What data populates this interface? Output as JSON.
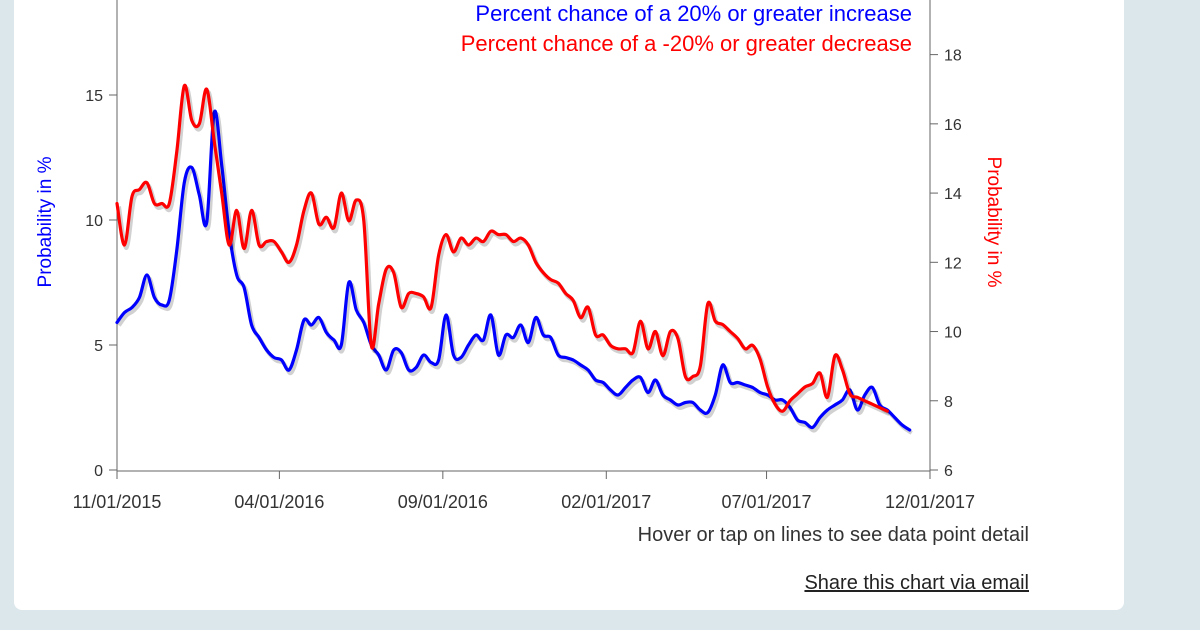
{
  "chart_data": {
    "type": "line",
    "legend": [
      {
        "label": "Percent chance of a 20% or greater increase",
        "color": "#0000ff"
      },
      {
        "label": "Percent chance of a -20% or greater decrease",
        "color": "#ff0000"
      }
    ],
    "y_left": {
      "label": "Probability in %",
      "ticks": [
        "0",
        "5",
        "10",
        "15"
      ],
      "range": [
        0,
        18
      ],
      "color": "#0000ff"
    },
    "y_right": {
      "label": "Probability in %",
      "ticks": [
        "6",
        "8",
        "10",
        "12",
        "14",
        "16",
        "18"
      ],
      "range": [
        6,
        19
      ],
      "color": "#ff0000"
    },
    "x_axis": {
      "ticks": [
        "11/01/2015",
        "04/01/2016",
        "09/01/2016",
        "02/01/2017",
        "07/01/2017",
        "12/01/2017"
      ],
      "range": [
        "2015-11-01",
        "2017-12-01"
      ]
    },
    "series": [
      {
        "name": "Percent chance of a 20% or greater increase",
        "axis": "left",
        "color": "#0000ff",
        "points": [
          [
            "2015-11-01",
            5.9
          ],
          [
            "2015-11-08",
            6.3
          ],
          [
            "2015-11-15",
            6.5
          ],
          [
            "2015-11-22",
            6.9
          ],
          [
            "2015-11-29",
            7.8
          ],
          [
            "2015-12-06",
            6.9
          ],
          [
            "2015-12-13",
            6.6
          ],
          [
            "2015-12-20",
            6.8
          ],
          [
            "2015-12-27",
            8.8
          ],
          [
            "2016-01-03",
            11.5
          ],
          [
            "2016-01-10",
            12.1
          ],
          [
            "2016-01-17",
            11.0
          ],
          [
            "2016-01-24",
            9.9
          ],
          [
            "2016-01-31",
            14.3
          ],
          [
            "2016-02-07",
            12.2
          ],
          [
            "2016-02-14",
            9.5
          ],
          [
            "2016-02-21",
            7.8
          ],
          [
            "2016-02-28",
            7.3
          ],
          [
            "2016-03-06",
            5.8
          ],
          [
            "2016-03-13",
            5.3
          ],
          [
            "2016-03-20",
            4.8
          ],
          [
            "2016-03-27",
            4.5
          ],
          [
            "2016-04-03",
            4.4
          ],
          [
            "2016-04-10",
            4.0
          ],
          [
            "2016-04-17",
            4.8
          ],
          [
            "2016-04-24",
            6.0
          ],
          [
            "2016-05-01",
            5.8
          ],
          [
            "2016-05-08",
            6.1
          ],
          [
            "2016-05-15",
            5.5
          ],
          [
            "2016-05-22",
            5.2
          ],
          [
            "2016-05-29",
            5.0
          ],
          [
            "2016-06-05",
            7.5
          ],
          [
            "2016-06-12",
            6.4
          ],
          [
            "2016-06-19",
            5.9
          ],
          [
            "2016-06-26",
            5.0
          ],
          [
            "2016-07-03",
            4.6
          ],
          [
            "2016-07-10",
            4.0
          ],
          [
            "2016-07-17",
            4.8
          ],
          [
            "2016-07-24",
            4.7
          ],
          [
            "2016-07-31",
            4.0
          ],
          [
            "2016-08-07",
            4.1
          ],
          [
            "2016-08-14",
            4.6
          ],
          [
            "2016-08-21",
            4.3
          ],
          [
            "2016-08-28",
            4.4
          ],
          [
            "2016-09-04",
            6.2
          ],
          [
            "2016-09-11",
            4.6
          ],
          [
            "2016-09-18",
            4.5
          ],
          [
            "2016-09-25",
            5.0
          ],
          [
            "2016-10-02",
            5.4
          ],
          [
            "2016-10-09",
            5.2
          ],
          [
            "2016-10-16",
            6.2
          ],
          [
            "2016-10-23",
            4.6
          ],
          [
            "2016-10-30",
            5.4
          ],
          [
            "2016-11-06",
            5.3
          ],
          [
            "2016-11-13",
            5.8
          ],
          [
            "2016-11-20",
            5.1
          ],
          [
            "2016-11-27",
            6.1
          ],
          [
            "2016-12-04",
            5.4
          ],
          [
            "2016-12-11",
            5.3
          ],
          [
            "2016-12-18",
            4.6
          ],
          [
            "2016-12-25",
            4.5
          ],
          [
            "2017-01-01",
            4.4
          ],
          [
            "2017-01-08",
            4.2
          ],
          [
            "2017-01-15",
            4.0
          ],
          [
            "2017-01-22",
            3.6
          ],
          [
            "2017-01-29",
            3.5
          ],
          [
            "2017-02-05",
            3.2
          ],
          [
            "2017-02-12",
            3.0
          ],
          [
            "2017-02-19",
            3.3
          ],
          [
            "2017-02-26",
            3.6
          ],
          [
            "2017-03-05",
            3.7
          ],
          [
            "2017-03-12",
            3.1
          ],
          [
            "2017-03-19",
            3.6
          ],
          [
            "2017-03-26",
            3.0
          ],
          [
            "2017-04-02",
            2.8
          ],
          [
            "2017-04-09",
            2.6
          ],
          [
            "2017-04-16",
            2.7
          ],
          [
            "2017-04-23",
            2.7
          ],
          [
            "2017-04-30",
            2.4
          ],
          [
            "2017-05-07",
            2.3
          ],
          [
            "2017-05-14",
            3.0
          ],
          [
            "2017-05-21",
            4.2
          ],
          [
            "2017-05-28",
            3.5
          ],
          [
            "2017-06-04",
            3.5
          ],
          [
            "2017-06-11",
            3.4
          ],
          [
            "2017-06-18",
            3.3
          ],
          [
            "2017-06-25",
            3.1
          ],
          [
            "2017-07-02",
            3.0
          ],
          [
            "2017-07-09",
            2.8
          ],
          [
            "2017-07-16",
            2.8
          ],
          [
            "2017-07-23",
            2.5
          ],
          [
            "2017-07-30",
            2.0
          ],
          [
            "2017-08-06",
            1.9
          ],
          [
            "2017-08-13",
            1.7
          ],
          [
            "2017-08-20",
            2.1
          ],
          [
            "2017-08-27",
            2.4
          ],
          [
            "2017-09-03",
            2.6
          ],
          [
            "2017-09-10",
            2.8
          ],
          [
            "2017-09-17",
            3.2
          ],
          [
            "2017-09-24",
            2.4
          ],
          [
            "2017-10-01",
            3.0
          ],
          [
            "2017-10-08",
            3.3
          ],
          [
            "2017-10-15",
            2.6
          ],
          [
            "2017-10-22",
            2.4
          ],
          [
            "2017-10-29",
            2.1
          ],
          [
            "2017-11-05",
            1.8
          ],
          [
            "2017-11-12",
            1.6
          ]
        ]
      },
      {
        "name": "Percent chance of a -20% or greater decrease",
        "axis": "right",
        "color": "#ff0000",
        "points": [
          [
            "2015-11-01",
            13.7
          ],
          [
            "2015-11-08",
            12.5
          ],
          [
            "2015-11-15",
            13.9
          ],
          [
            "2015-11-22",
            14.1
          ],
          [
            "2015-11-29",
            14.3
          ],
          [
            "2015-12-06",
            13.7
          ],
          [
            "2015-12-13",
            13.7
          ],
          [
            "2015-12-20",
            13.7
          ],
          [
            "2015-12-27",
            15.2
          ],
          [
            "2016-01-03",
            17.1
          ],
          [
            "2016-01-10",
            16.1
          ],
          [
            "2016-01-17",
            16.0
          ],
          [
            "2016-01-24",
            17.0
          ],
          [
            "2016-01-31",
            15.5
          ],
          [
            "2016-02-07",
            14.0
          ],
          [
            "2016-02-14",
            12.5
          ],
          [
            "2016-02-21",
            13.5
          ],
          [
            "2016-02-28",
            12.4
          ],
          [
            "2016-03-06",
            13.5
          ],
          [
            "2016-03-13",
            12.5
          ],
          [
            "2016-03-20",
            12.6
          ],
          [
            "2016-03-27",
            12.6
          ],
          [
            "2016-04-03",
            12.3
          ],
          [
            "2016-04-10",
            12.0
          ],
          [
            "2016-04-17",
            12.5
          ],
          [
            "2016-04-24",
            13.5
          ],
          [
            "2016-05-01",
            14.0
          ],
          [
            "2016-05-08",
            13.1
          ],
          [
            "2016-05-15",
            13.3
          ],
          [
            "2016-05-22",
            13.0
          ],
          [
            "2016-05-29",
            14.0
          ],
          [
            "2016-06-05",
            13.2
          ],
          [
            "2016-06-12",
            13.8
          ],
          [
            "2016-06-19",
            13.2
          ],
          [
            "2016-06-26",
            9.6
          ],
          [
            "2016-07-03",
            10.8
          ],
          [
            "2016-07-10",
            11.8
          ],
          [
            "2016-07-17",
            11.7
          ],
          [
            "2016-07-24",
            10.7
          ],
          [
            "2016-07-31",
            11.1
          ],
          [
            "2016-08-07",
            11.1
          ],
          [
            "2016-08-14",
            11.0
          ],
          [
            "2016-08-21",
            10.7
          ],
          [
            "2016-08-28",
            12.2
          ],
          [
            "2016-09-04",
            12.8
          ],
          [
            "2016-09-11",
            12.3
          ],
          [
            "2016-09-18",
            12.7
          ],
          [
            "2016-09-25",
            12.5
          ],
          [
            "2016-10-02",
            12.7
          ],
          [
            "2016-10-09",
            12.6
          ],
          [
            "2016-10-16",
            12.9
          ],
          [
            "2016-10-23",
            12.8
          ],
          [
            "2016-10-30",
            12.8
          ],
          [
            "2016-11-06",
            12.6
          ],
          [
            "2016-11-13",
            12.7
          ],
          [
            "2016-11-20",
            12.5
          ],
          [
            "2016-11-27",
            12.0
          ],
          [
            "2016-12-04",
            11.7
          ],
          [
            "2016-12-11",
            11.5
          ],
          [
            "2016-12-18",
            11.4
          ],
          [
            "2016-12-25",
            11.1
          ],
          [
            "2017-01-01",
            10.9
          ],
          [
            "2017-01-08",
            10.4
          ],
          [
            "2017-01-15",
            10.7
          ],
          [
            "2017-01-22",
            9.9
          ],
          [
            "2017-01-29",
            9.9
          ],
          [
            "2017-02-05",
            9.6
          ],
          [
            "2017-02-12",
            9.5
          ],
          [
            "2017-02-19",
            9.5
          ],
          [
            "2017-02-26",
            9.4
          ],
          [
            "2017-03-05",
            10.3
          ],
          [
            "2017-03-12",
            9.5
          ],
          [
            "2017-03-19",
            10.0
          ],
          [
            "2017-03-26",
            9.3
          ],
          [
            "2017-04-02",
            10.0
          ],
          [
            "2017-04-09",
            9.8
          ],
          [
            "2017-04-16",
            8.7
          ],
          [
            "2017-04-23",
            8.7
          ],
          [
            "2017-04-30",
            9.0
          ],
          [
            "2017-05-07",
            10.8
          ],
          [
            "2017-05-14",
            10.3
          ],
          [
            "2017-05-21",
            10.2
          ],
          [
            "2017-05-28",
            10.0
          ],
          [
            "2017-06-04",
            9.8
          ],
          [
            "2017-06-11",
            9.5
          ],
          [
            "2017-06-18",
            9.6
          ],
          [
            "2017-06-25",
            9.2
          ],
          [
            "2017-07-02",
            8.4
          ],
          [
            "2017-07-09",
            7.9
          ],
          [
            "2017-07-16",
            7.7
          ],
          [
            "2017-07-23",
            8.0
          ],
          [
            "2017-07-30",
            8.2
          ],
          [
            "2017-08-06",
            8.4
          ],
          [
            "2017-08-13",
            8.5
          ],
          [
            "2017-08-20",
            8.8
          ],
          [
            "2017-08-27",
            8.1
          ],
          [
            "2017-09-03",
            9.3
          ],
          [
            "2017-09-10",
            8.9
          ],
          [
            "2017-09-17",
            8.2
          ],
          [
            "2017-09-24",
            8.1
          ],
          [
            "2017-10-01",
            8.0
          ],
          [
            "2017-10-08",
            7.9
          ],
          [
            "2017-10-15",
            7.8
          ],
          [
            "2017-10-22",
            7.7
          ]
        ]
      }
    ]
  },
  "footer": {
    "hint": "Hover or tap on lines to see data point detail",
    "share_label": "Share this chart via email"
  }
}
